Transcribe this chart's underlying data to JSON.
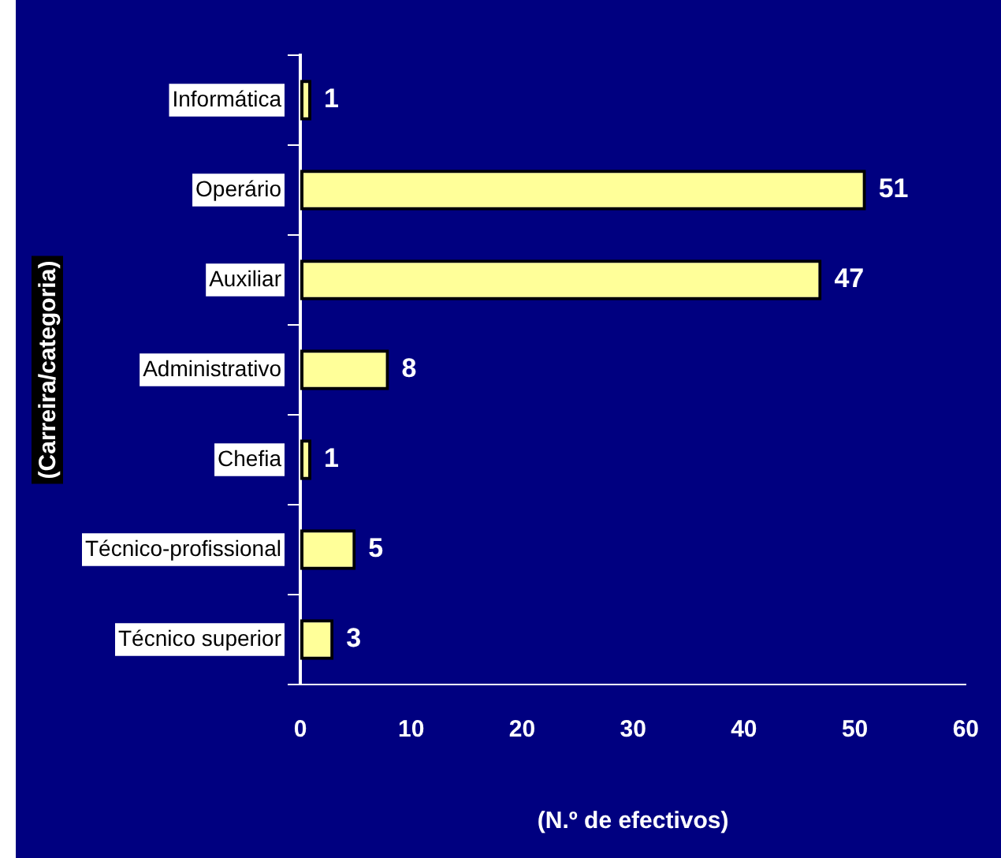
{
  "chart_data": {
    "type": "bar",
    "orientation": "horizontal",
    "ylabel": "(Carreira/categoria)",
    "xlabel": "(N.º de efectivos)",
    "categories": [
      "Informática",
      "Operário",
      "Auxiliar",
      "Administrativo",
      "Chefia",
      "Técnico-profissional",
      "Técnico superior"
    ],
    "values": [
      1,
      51,
      47,
      8,
      1,
      5,
      3
    ],
    "color": "#ffff99",
    "xlim": [
      0,
      60
    ],
    "xticks": [
      0,
      10,
      20,
      30,
      40,
      50,
      60
    ],
    "data_labels": true,
    "grid": false,
    "legend": false
  }
}
